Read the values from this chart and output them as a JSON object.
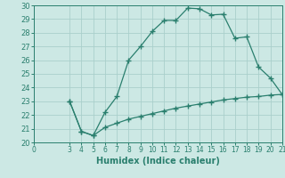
{
  "xlabel": "Humidex (Indice chaleur)",
  "xlim": [
    0,
    21
  ],
  "ylim": [
    20,
    30
  ],
  "xticks": [
    0,
    3,
    4,
    5,
    6,
    7,
    8,
    9,
    10,
    11,
    12,
    13,
    14,
    15,
    16,
    17,
    18,
    19,
    20,
    21
  ],
  "yticks": [
    20,
    21,
    22,
    23,
    24,
    25,
    26,
    27,
    28,
    29,
    30
  ],
  "line1_x": [
    3,
    4,
    5,
    6,
    7,
    8,
    9,
    10,
    11,
    12,
    13,
    14,
    15,
    16,
    17,
    18,
    19,
    20,
    21
  ],
  "line1_y": [
    23.0,
    20.8,
    20.5,
    22.2,
    23.35,
    26.0,
    27.0,
    28.1,
    28.9,
    28.9,
    29.8,
    29.75,
    29.3,
    29.35,
    27.6,
    27.7,
    25.5,
    24.7,
    23.5
  ],
  "line2_x": [
    3,
    4,
    5,
    6,
    7,
    8,
    9,
    10,
    11,
    12,
    13,
    14,
    15,
    16,
    17,
    18,
    19,
    20,
    21
  ],
  "line2_y": [
    23.0,
    20.8,
    20.5,
    21.1,
    21.4,
    21.7,
    21.9,
    22.1,
    22.3,
    22.5,
    22.65,
    22.8,
    22.95,
    23.1,
    23.2,
    23.3,
    23.35,
    23.45,
    23.5
  ],
  "line_color": "#2a7f6e",
  "bg_color": "#cce8e4",
  "grid_color": "#aacfcb",
  "tick_color": "#2a7f6e",
  "xlabel_color": "#2a7f6e",
  "marker": "+",
  "markersize": 4,
  "linewidth": 0.9
}
